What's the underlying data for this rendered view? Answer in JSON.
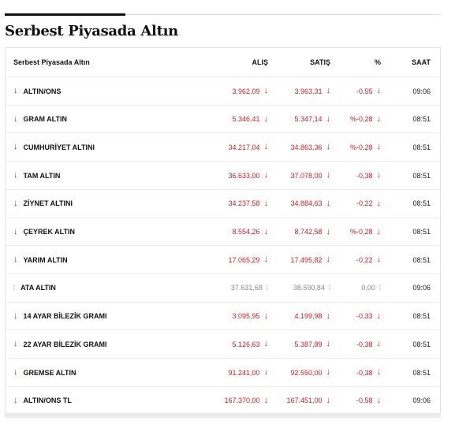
{
  "page": {
    "title": "Serbest Piyasada Altın"
  },
  "table": {
    "headers": {
      "name": "Serbest Piyasada Altın",
      "alis": "ALIŞ",
      "satis": "SATIŞ",
      "pct": "%",
      "saat": "SAAT"
    },
    "rows": [
      {
        "name": "ALTIN/ONS",
        "alis": "3.962,09",
        "satis": "3.963,31",
        "pct": "-0,55",
        "saat": "09:06",
        "trend": "down"
      },
      {
        "name": "GRAM ALTIN",
        "alis": "5.346,41",
        "satis": "5.347,14",
        "pct": "%-0,28",
        "saat": "08:51",
        "trend": "down"
      },
      {
        "name": "CUMHURİYET ALTINI",
        "alis": "34.217,04",
        "satis": "34.863,36",
        "pct": "%-0,28",
        "saat": "08:51",
        "trend": "down"
      },
      {
        "name": "TAM ALTIN",
        "alis": "36.633,00",
        "satis": "37.078,00",
        "pct": "-0,38",
        "saat": "08:51",
        "trend": "down"
      },
      {
        "name": "ZİYNET ALTINI",
        "alis": "34.237,58",
        "satis": "34.884,63",
        "pct": "-0,22",
        "saat": "08:51",
        "trend": "down"
      },
      {
        "name": "ÇEYREK ALTIN",
        "alis": "8.554,26",
        "satis": "8.742,58",
        "pct": "%-0,28",
        "saat": "08:51",
        "trend": "down"
      },
      {
        "name": "YARIM ALTIN",
        "alis": "17.065,29",
        "satis": "17.495,82",
        "pct": "-0,22",
        "saat": "08:51",
        "trend": "down"
      },
      {
        "name": "ATA ALTIN",
        "alis": "37.631,68",
        "satis": "38.590,84",
        "pct": "0,00",
        "saat": "09:06",
        "trend": "flat"
      },
      {
        "name": "14 AYAR BİLEZİK GRAMI",
        "alis": "3.095,95",
        "satis": "4.199,98",
        "pct": "-0,33",
        "saat": "08:51",
        "trend": "down"
      },
      {
        "name": "22 AYAR BİLEZİK GRAMI",
        "alis": "5.126,63",
        "satis": "5.387,89",
        "pct": "-0,38",
        "saat": "08:51",
        "trend": "down"
      },
      {
        "name": "GREMSE ALTIN",
        "alis": "91.241,00",
        "satis": "92.550,00",
        "pct": "-0,38",
        "saat": "08:51",
        "trend": "down"
      },
      {
        "name": "ALTIN/ONS TL",
        "alis": "167.370,00",
        "satis": "167.451,00",
        "pct": "-0,58",
        "saat": "09:06",
        "trend": "down"
      }
    ]
  },
  "icons": {
    "down": "arrow-down-icon",
    "flat": "neutral-icon"
  },
  "colors": {
    "down": "#d0202a",
    "flat": "#8a8a8a",
    "accent_rule": "#111111"
  }
}
